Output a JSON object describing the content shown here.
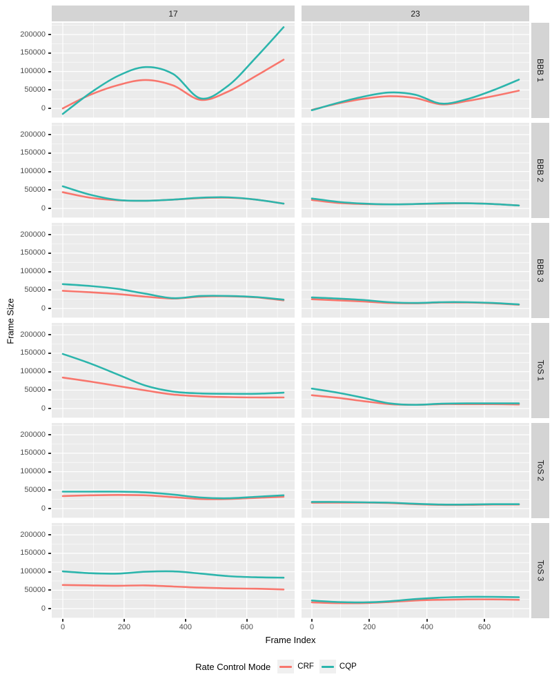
{
  "figure": {
    "x_title": "Frame Index",
    "y_title": "Frame Size",
    "legend": {
      "title": "Rate Control Mode",
      "entries": [
        {
          "label": "CRF",
          "color": "#F8766D"
        },
        {
          "label": "CQP",
          "color": "#2CB5AC"
        }
      ]
    }
  },
  "chart_data": {
    "type": "line",
    "title": "",
    "xlabel": "Frame Index",
    "ylabel": "Frame Size",
    "legend_title": "Rate Control Mode",
    "legend_position": "bottom",
    "grid": true,
    "panel_background": "#EBEBEB",
    "strip_background": "#D4D4D4",
    "facet_cols": [
      "17",
      "23"
    ],
    "facet_rows": [
      "BBB 1",
      "BBB 2",
      "BBB 3",
      "ToS 1",
      "ToS 2",
      "ToS 3"
    ],
    "x": [
      0,
      90,
      180,
      270,
      360,
      450,
      540,
      630,
      720
    ],
    "x_ticks": [
      0,
      200,
      400,
      600
    ],
    "y_ticks": [
      0,
      50000,
      100000,
      150000,
      200000
    ],
    "x_minor": [
      100,
      300,
      500,
      700
    ],
    "y_minor": [
      -25000,
      25000,
      75000,
      125000,
      175000,
      225000
    ],
    "xlim": [
      -36,
      756
    ],
    "ylim": [
      -26000,
      232000
    ],
    "series_colors": {
      "CRF": "#F8766D",
      "CQP": "#2CB5AC"
    },
    "panels": [
      {
        "row": "BBB 1",
        "col": "17",
        "series": [
          {
            "name": "CRF",
            "values": [
              0,
              37000,
              63000,
              77000,
              62000,
              23000,
              46000,
              88000,
              132000
            ]
          },
          {
            "name": "CQP",
            "values": [
              -15000,
              42000,
              88000,
              112000,
              93000,
              27000,
              62000,
              138000,
              220000
            ]
          }
        ]
      },
      {
        "row": "BBB 1",
        "col": "23",
        "series": [
          {
            "name": "CRF",
            "values": [
              -4000,
              13000,
              26000,
              33000,
              28000,
              11000,
              20000,
              33000,
              48000
            ]
          },
          {
            "name": "CQP",
            "values": [
              -5000,
              15000,
              32000,
              43000,
              37000,
              13000,
              25000,
              49000,
              78000
            ]
          }
        ]
      },
      {
        "row": "BBB 2",
        "col": "17",
        "series": [
          {
            "name": "CRF",
            "values": [
              44000,
              29000,
              22000,
              21000,
              24000,
              28000,
              29000,
              24000,
              13000
            ]
          },
          {
            "name": "CQP",
            "values": [
              60000,
              37000,
              23000,
              21000,
              24000,
              29000,
              30000,
              24000,
              13000
            ]
          }
        ]
      },
      {
        "row": "BBB 2",
        "col": "23",
        "series": [
          {
            "name": "CRF",
            "values": [
              23000,
              15000,
              12000,
              11000,
              12000,
              13000,
              14000,
              12000,
              8000
            ]
          },
          {
            "name": "CQP",
            "values": [
              27000,
              18000,
              13000,
              11000,
              12000,
              14000,
              14000,
              12000,
              8000
            ]
          }
        ]
      },
      {
        "row": "BBB 3",
        "col": "17",
        "series": [
          {
            "name": "CRF",
            "values": [
              48000,
              44000,
              39000,
              32000,
              27000,
              32000,
              33000,
              30000,
              22000
            ]
          },
          {
            "name": "CQP",
            "values": [
              66000,
              61000,
              53000,
              40000,
              28000,
              34000,
              34000,
              31000,
              24000
            ]
          }
        ]
      },
      {
        "row": "BBB 3",
        "col": "23",
        "series": [
          {
            "name": "CRF",
            "values": [
              25000,
              22000,
              19000,
              15000,
              14000,
              16000,
              16000,
              14000,
              10000
            ]
          },
          {
            "name": "CQP",
            "values": [
              30000,
              27000,
              23000,
              17000,
              15000,
              17000,
              17000,
              15000,
              11000
            ]
          }
        ]
      },
      {
        "row": "ToS 1",
        "col": "17",
        "series": [
          {
            "name": "CRF",
            "values": [
              84000,
              73000,
              61000,
              49000,
              38000,
              33000,
              31000,
              30000,
              30000
            ]
          },
          {
            "name": "CQP",
            "values": [
              148000,
              122000,
              92000,
              62000,
              46000,
              41000,
              40000,
              40000,
              43000
            ]
          }
        ]
      },
      {
        "row": "ToS 1",
        "col": "23",
        "series": [
          {
            "name": "CRF",
            "values": [
              36000,
              29000,
              20000,
              12000,
              10000,
              12000,
              12000,
              12000,
              11000
            ]
          },
          {
            "name": "CQP",
            "values": [
              54000,
              43000,
              29000,
              14000,
              10000,
              13000,
              14000,
              14000,
              14000
            ]
          }
        ]
      },
      {
        "row": "ToS 2",
        "col": "17",
        "series": [
          {
            "name": "CRF",
            "values": [
              34000,
              36000,
              37000,
              36000,
              31000,
              26000,
              26000,
              29000,
              32000
            ]
          },
          {
            "name": "CQP",
            "values": [
              46000,
              46000,
              46000,
              44000,
              38000,
              30000,
              28000,
              32000,
              36000
            ]
          }
        ]
      },
      {
        "row": "ToS 2",
        "col": "23",
        "series": [
          {
            "name": "CRF",
            "values": [
              16000,
              16000,
              16000,
              15000,
              12000,
              10000,
              10000,
              11000,
              11000
            ]
          },
          {
            "name": "CQP",
            "values": [
              18000,
              18000,
              17000,
              16000,
              13000,
              11000,
              11000,
              12000,
              12000
            ]
          }
        ]
      },
      {
        "row": "ToS 3",
        "col": "17",
        "series": [
          {
            "name": "CRF",
            "values": [
              64000,
              63000,
              62000,
              63000,
              60000,
              57000,
              55000,
              54000,
              52000
            ]
          },
          {
            "name": "CQP",
            "values": [
              101000,
              96000,
              95000,
              100000,
              101000,
              95000,
              88000,
              85000,
              84000
            ]
          }
        ]
      },
      {
        "row": "ToS 3",
        "col": "23",
        "series": [
          {
            "name": "CRF",
            "values": [
              17000,
              15000,
              15000,
              18000,
              22000,
              24000,
              25000,
              25000,
              24000
            ]
          },
          {
            "name": "CQP",
            "values": [
              22000,
              18000,
              17000,
              20000,
              26000,
              30000,
              32000,
              32000,
              31000
            ]
          }
        ]
      }
    ]
  }
}
